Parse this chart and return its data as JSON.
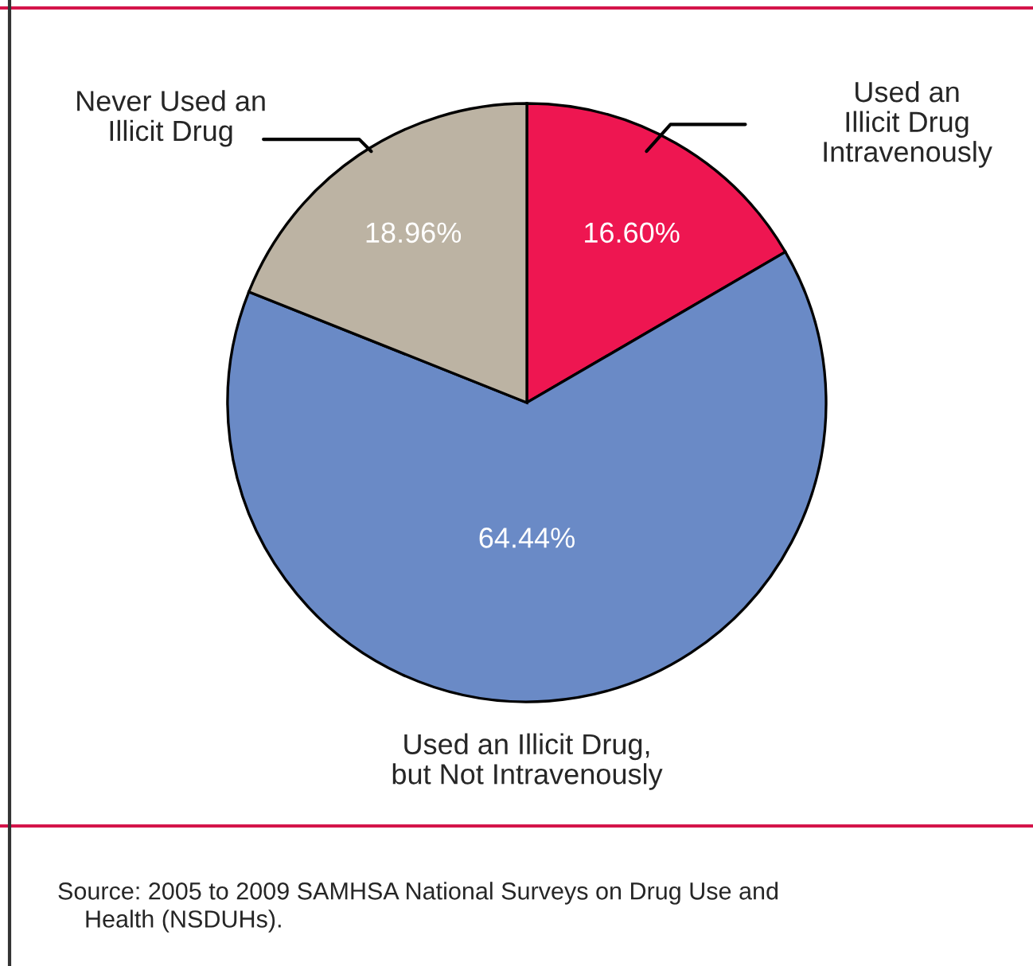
{
  "chart_data": {
    "type": "pie",
    "categories": [
      "Used an\nIllicit Drug\nIntravenously",
      "Used an Illicit Drug,\nbut Not Intravenously",
      "Never Used an\nIllicit Drug"
    ],
    "values": [
      16.6,
      64.44,
      18.96
    ],
    "colors": [
      "#ee1651",
      "#6a8ac6",
      "#bcb3a3"
    ],
    "value_labels": [
      "16.60%",
      "64.44%",
      "18.96%"
    ],
    "annotations": [
      "Source: 2005 to 2009 SAMHSA National Surveys on Drug Use and\n    Health (NSDUHs)."
    ]
  }
}
